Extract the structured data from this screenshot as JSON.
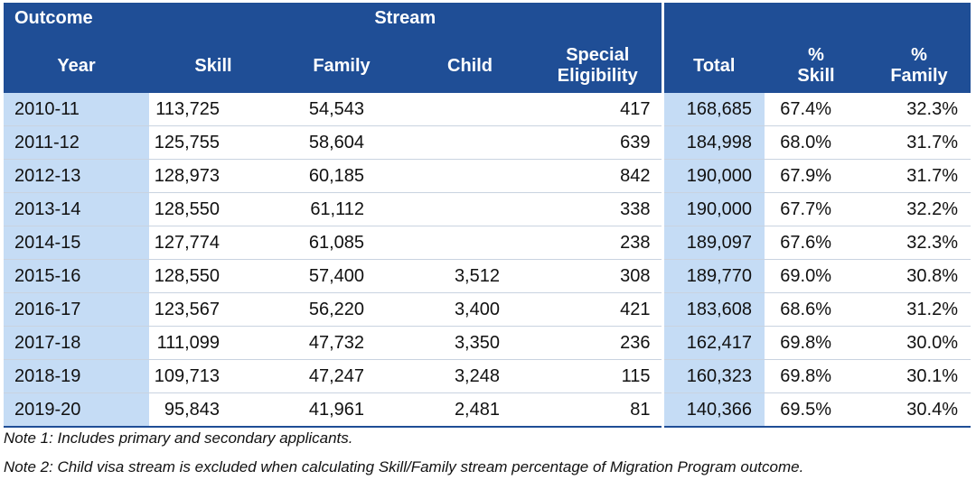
{
  "header": {
    "outcome": "Outcome",
    "stream": "Stream",
    "year": "Year",
    "skill": "Skill",
    "family": "Family",
    "child": "Child",
    "special_line1": "Special",
    "special_line2": "Eligibility",
    "total": "Total",
    "pct_skill_line1": "%",
    "pct_skill_line2": "Skill",
    "pct_family_line1": "%",
    "pct_family_line2": "Family"
  },
  "rows": [
    {
      "year": "2010-11",
      "skill": "113,725",
      "family": "54,543",
      "child": "",
      "special": "417",
      "total": "168,685",
      "pct_skill": "67.4%",
      "pct_family": "32.3%"
    },
    {
      "year": "2011-12",
      "skill": "125,755",
      "family": "58,604",
      "child": "",
      "special": "639",
      "total": "184,998",
      "pct_skill": "68.0%",
      "pct_family": "31.7%"
    },
    {
      "year": "2012-13",
      "skill": "128,973",
      "family": "60,185",
      "child": "",
      "special": "842",
      "total": "190,000",
      "pct_skill": "67.9%",
      "pct_family": "31.7%"
    },
    {
      "year": "2013-14",
      "skill": "128,550",
      "family": "61,112",
      "child": "",
      "special": "338",
      "total": "190,000",
      "pct_skill": "67.7%",
      "pct_family": "32.2%"
    },
    {
      "year": "2014-15",
      "skill": "127,774",
      "family": "61,085",
      "child": "",
      "special": "238",
      "total": "189,097",
      "pct_skill": "67.6%",
      "pct_family": "32.3%"
    },
    {
      "year": "2015-16",
      "skill": "128,550",
      "family": "57,400",
      "child": "3,512",
      "special": "308",
      "total": "189,770",
      "pct_skill": "69.0%",
      "pct_family": "30.8%"
    },
    {
      "year": "2016-17",
      "skill": "123,567",
      "family": "56,220",
      "child": "3,400",
      "special": "421",
      "total": "183,608",
      "pct_skill": "68.6%",
      "pct_family": "31.2%"
    },
    {
      "year": "2017-18",
      "skill": "111,099",
      "family": "47,732",
      "child": "3,350",
      "special": "236",
      "total": "162,417",
      "pct_skill": "69.8%",
      "pct_family": "30.0%"
    },
    {
      "year": "2018-19",
      "skill": "109,713",
      "family": "47,247",
      "child": "3,248",
      "special": "115",
      "total": "160,323",
      "pct_skill": "69.8%",
      "pct_family": "30.1%"
    },
    {
      "year": "2019-20",
      "skill": "95,843",
      "family": "41,961",
      "child": "2,481",
      "special": "81",
      "total": "140,366",
      "pct_skill": "69.5%",
      "pct_family": "30.4%"
    }
  ],
  "notes": {
    "note1": "Note 1: Includes primary and secondary applicants.",
    "note2": "Note 2: Child visa stream is excluded when calculating Skill/Family stream percentage of Migration Program outcome."
  }
}
